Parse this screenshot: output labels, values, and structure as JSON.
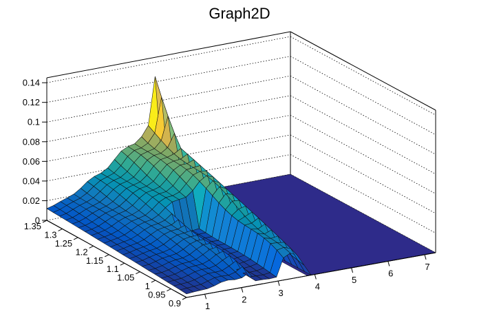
{
  "chart_data": {
    "type": "surface",
    "title": "Graph2D",
    "xlabel": "",
    "ylabel": "",
    "zlabel": "",
    "x_range": [
      0.5,
      7.3
    ],
    "y_range": [
      0.9,
      1.35
    ],
    "z_range": [
      0,
      0.145
    ],
    "x_ticks": [
      "1",
      "2",
      "3",
      "4",
      "5",
      "6",
      "7"
    ],
    "x_tick_values": [
      1,
      2,
      3,
      4,
      5,
      6,
      7
    ],
    "y_ticks": [
      "0.9",
      "0.95",
      "1",
      "1.05",
      "1.1",
      "1.15",
      "1.2",
      "1.25",
      "1.3",
      "1.35"
    ],
    "y_tick_values": [
      0.9,
      0.95,
      1.0,
      1.05,
      1.1,
      1.15,
      1.2,
      1.25,
      1.3,
      1.35
    ],
    "z_ticks": [
      "0",
      "0.02",
      "0.04",
      "0.06",
      "0.08",
      "0.1",
      "0.12",
      "0.14"
    ],
    "z_tick_values": [
      0,
      0.02,
      0.04,
      0.06,
      0.08,
      0.1,
      0.12,
      0.14
    ],
    "grid": true,
    "colormap": [
      "#352a87",
      "#0363e1",
      "#1485d4",
      "#06a7c6",
      "#38b99e",
      "#92bf73",
      "#d9ba56",
      "#fcce2e",
      "#f9fb0e"
    ],
    "peak": {
      "x": 3.55,
      "y": 1.3,
      "z": 0.138
    }
  }
}
